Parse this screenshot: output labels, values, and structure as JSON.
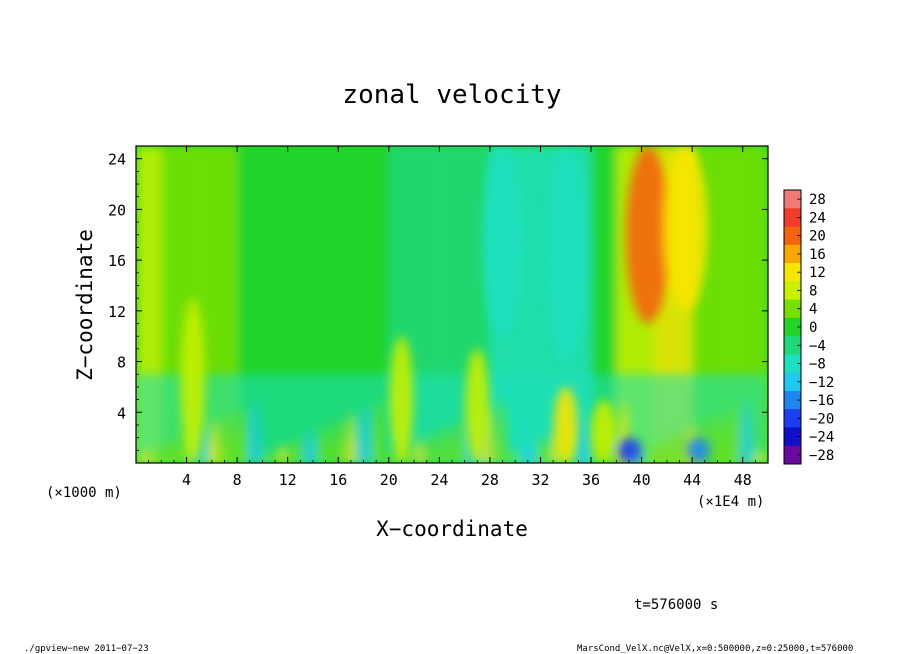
{
  "chart_data": {
    "type": "heatmap",
    "title": "zonal velocity",
    "xlabel": "X−coordinate",
    "ylabel": "Z−coordinate",
    "x_unit_left": "(×1000 m)",
    "x_unit_right": "(×1E4 m)",
    "xlim": [
      0,
      50
    ],
    "ylim": [
      0,
      25
    ],
    "x_ticks": [
      4,
      8,
      12,
      16,
      20,
      24,
      28,
      32,
      36,
      40,
      44,
      48
    ],
    "y_ticks": [
      4,
      8,
      12,
      16,
      20,
      24
    ],
    "colorbar": {
      "levels": [
        28,
        24,
        20,
        16,
        12,
        8,
        4,
        0,
        -4,
        -8,
        -12,
        -16,
        -20,
        -24,
        -28
      ],
      "labels": [
        "28",
        "24",
        "20",
        "16",
        "12",
        "8",
        "4",
        "0",
        "−4",
        "−8",
        "−12",
        "−16",
        "−20",
        "−24",
        "−28"
      ],
      "colors": [
        "#f47a7a",
        "#f23b2b",
        "#f46410",
        "#f7a800",
        "#f7e600",
        "#c8f000",
        "#78e000",
        "#22d42a",
        "#1ed87a",
        "#1ee0c0",
        "#20c8f0",
        "#1e86f0",
        "#1a3ef0",
        "#1010c8",
        "#6a0aa0"
      ]
    },
    "features": [
      {
        "kind": "band",
        "x": 4.5,
        "z0": 0,
        "z1": 13,
        "value": 9
      },
      {
        "kind": "band",
        "x": 21,
        "z0": 0,
        "z1": 10,
        "value": 6
      },
      {
        "kind": "band",
        "x": 27,
        "z0": 0,
        "z1": 9,
        "value": 7
      },
      {
        "kind": "band",
        "x": 34,
        "z0": 0,
        "z1": 6,
        "value": 12
      },
      {
        "kind": "band",
        "x": 37,
        "z0": 0,
        "z1": 5,
        "value": 8
      },
      {
        "kind": "jet",
        "x": 40.5,
        "z0": 11,
        "z1": 25,
        "value": 20
      },
      {
        "kind": "jet",
        "x": 43.5,
        "z0": 12,
        "z1": 25,
        "value": 11
      },
      {
        "kind": "cold",
        "x": 39,
        "z0": 0,
        "z1": 2,
        "value": -22
      },
      {
        "kind": "cold",
        "x": 44.5,
        "z0": 0,
        "z1": 2,
        "value": -16
      },
      {
        "kind": "cold",
        "x": 29,
        "z0": 10,
        "z1": 25,
        "value": -9
      },
      {
        "kind": "cold",
        "x": 34,
        "z0": 8,
        "z1": 25,
        "value": -10
      }
    ]
  },
  "annotations": {
    "time": "t=576000 s",
    "footer_left": "./gpview−new   2011−07−23",
    "footer_right": "MarsCond_VelX.nc@VelX,x=0:500000,z=0:25000,t=576000"
  }
}
